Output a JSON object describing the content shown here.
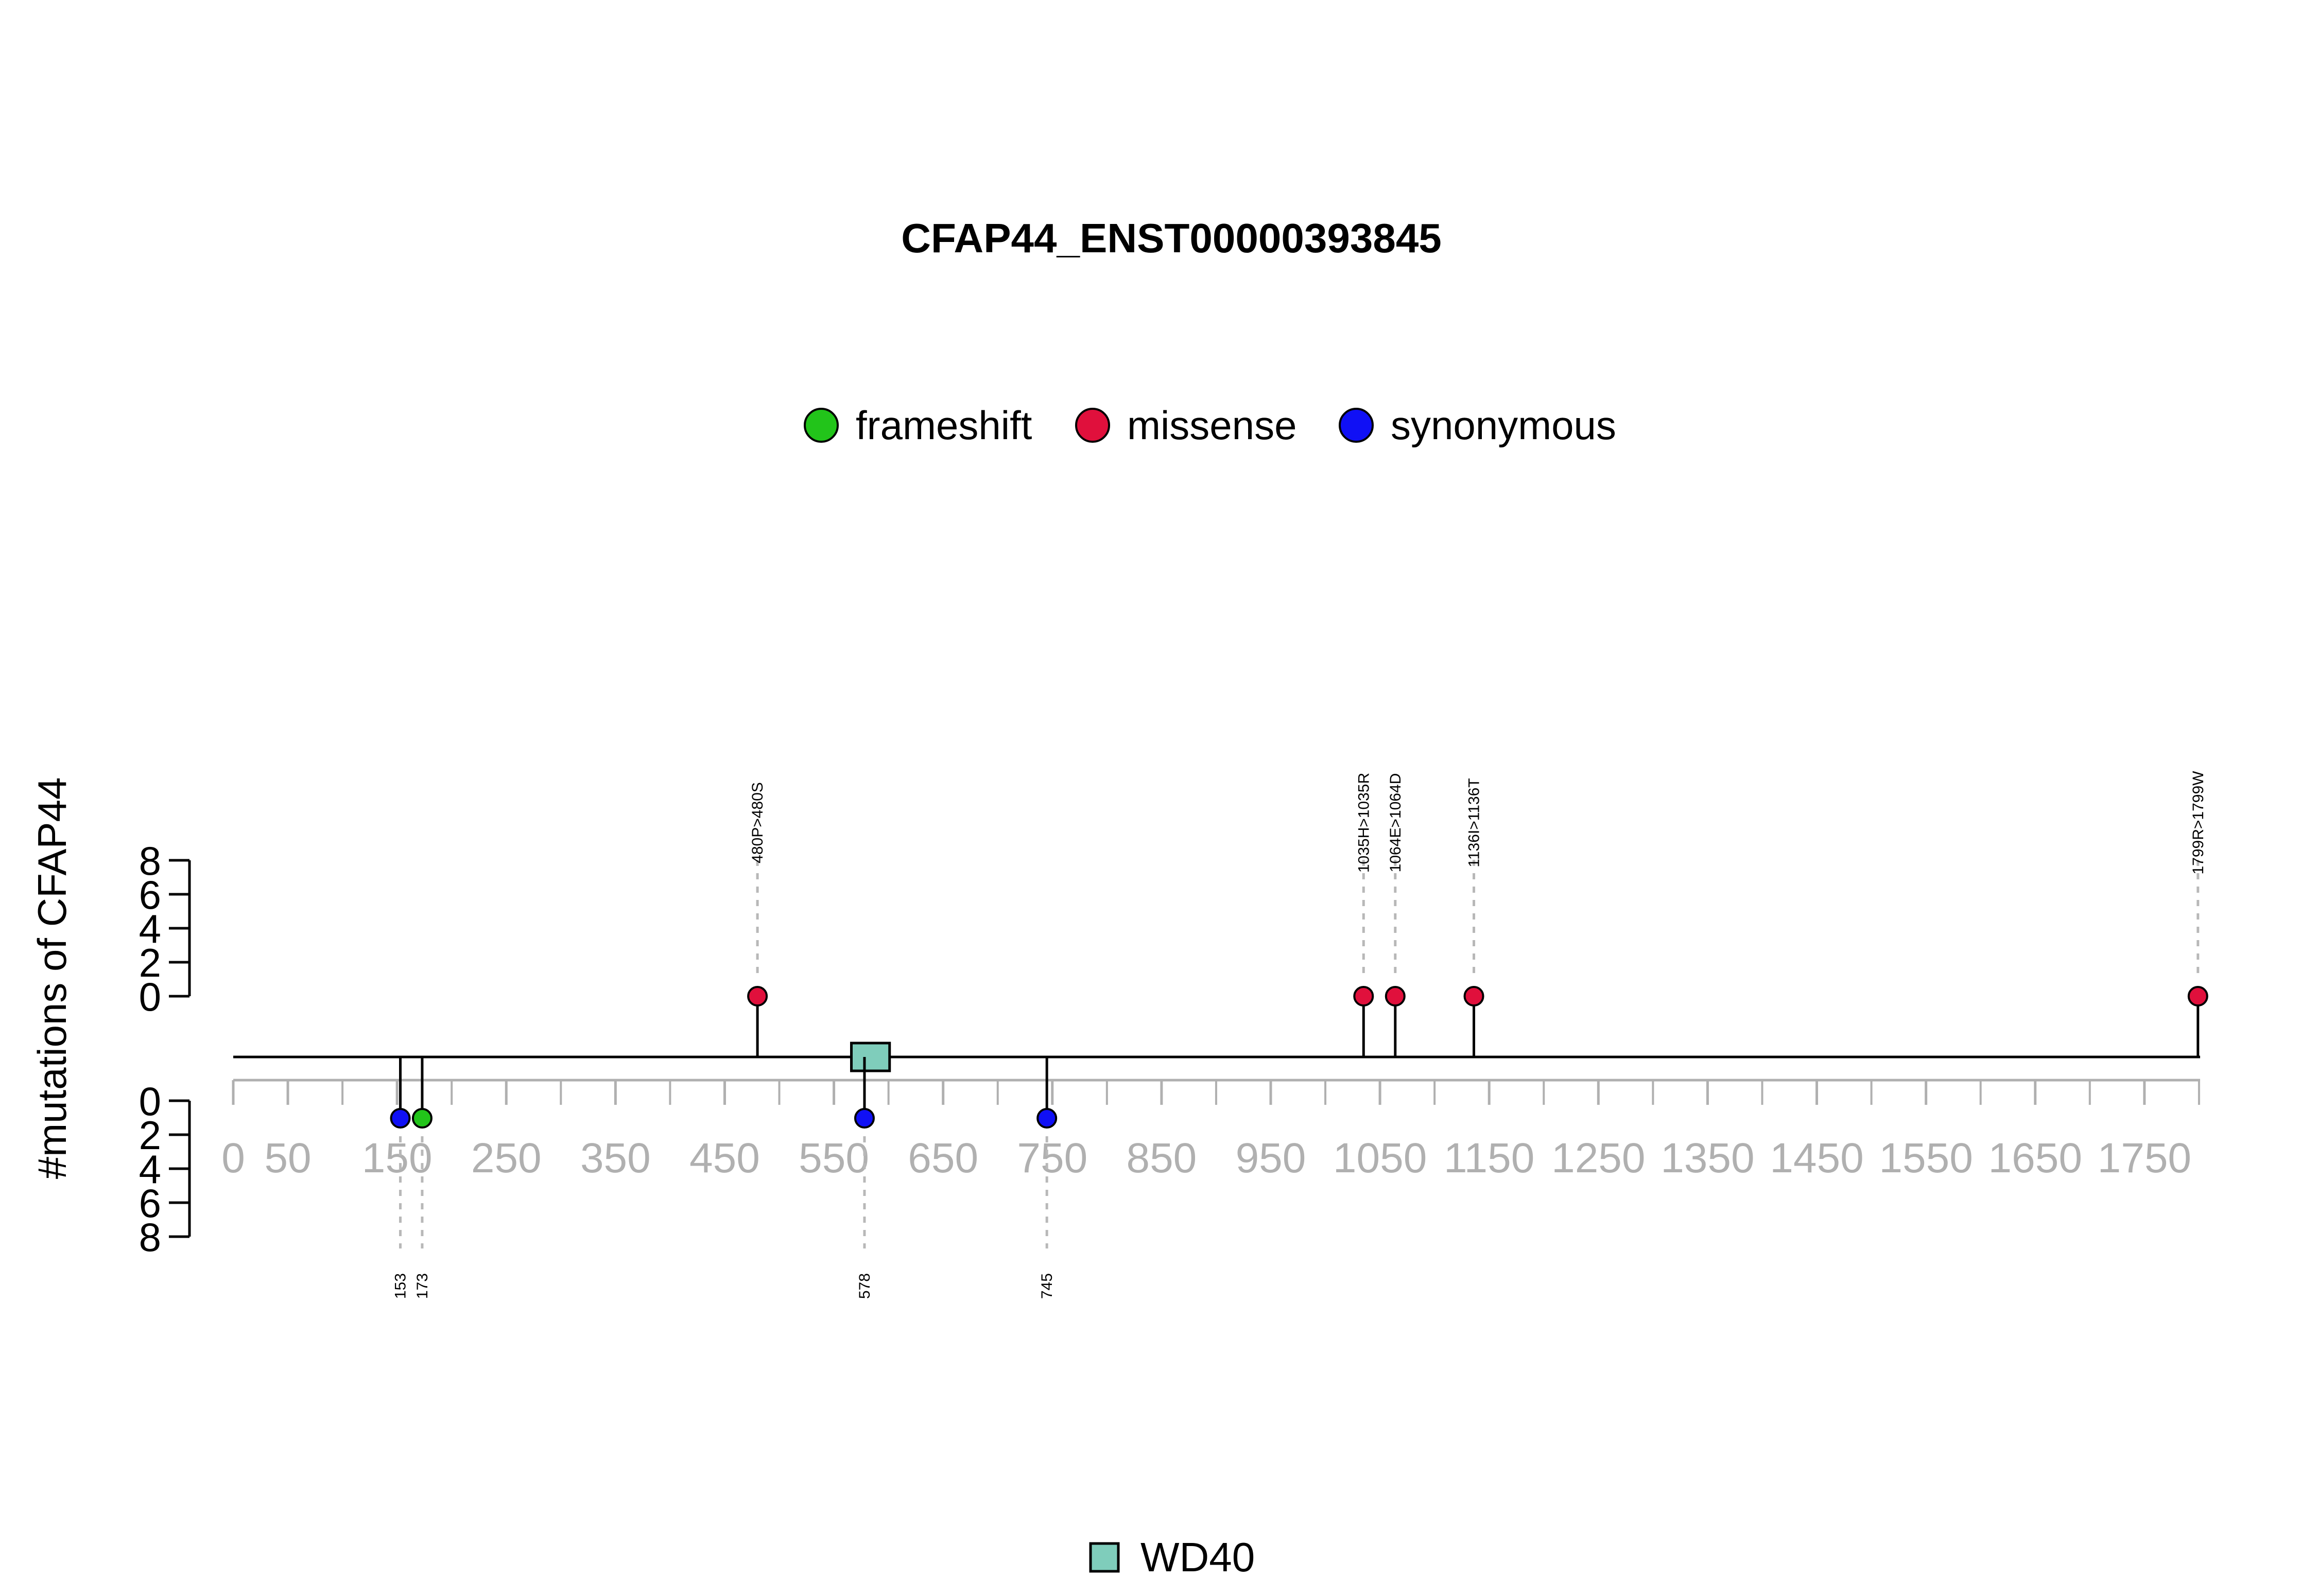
{
  "chart_data": {
    "type": "lollipop",
    "title": "CFAP44_ENST00000393845",
    "ylabel": "#mutations of CFAP44",
    "protein_length": 1801,
    "xlim": [
      0,
      1801
    ],
    "x_ticks": [
      0,
      50,
      150,
      250,
      350,
      450,
      550,
      650,
      750,
      850,
      950,
      1050,
      1150,
      1250,
      1350,
      1450,
      1550,
      1650,
      1750
    ],
    "y_ticks_top": [
      0,
      2,
      4,
      6,
      8
    ],
    "y_ticks_bottom": [
      0,
      2,
      4,
      6,
      8
    ],
    "legend": [
      {
        "label": "frameshift",
        "color": "#22c41a"
      },
      {
        "label": "missense",
        "color": "#e0103c"
      },
      {
        "label": "synonymous",
        "color": "#1010f5"
      }
    ],
    "top_mutations": [
      {
        "position": 480,
        "label": "480P>480S",
        "type": "missense",
        "count": 1
      },
      {
        "position": 1035,
        "label": "1035H>1035R",
        "type": "missense",
        "count": 1
      },
      {
        "position": 1064,
        "label": "1064E>1064D",
        "type": "missense",
        "count": 1
      },
      {
        "position": 1136,
        "label": "1136I>1136T",
        "type": "missense",
        "count": 1
      },
      {
        "position": 1799,
        "label": "1799R>1799W",
        "type": "missense",
        "count": 1
      }
    ],
    "bottom_mutations": [
      {
        "position": 153,
        "label": "153",
        "type": "synonymous",
        "count": 1
      },
      {
        "position": 173,
        "label": "173",
        "type": "frameshift",
        "count": 1
      },
      {
        "position": 578,
        "label": "578",
        "type": "synonymous",
        "count": 1
      },
      {
        "position": 745,
        "label": "745",
        "type": "synonymous",
        "count": 1
      }
    ],
    "domains": [
      {
        "name": "WD40",
        "start": 566,
        "end": 601,
        "color": "#7fcdbb"
      }
    ]
  }
}
